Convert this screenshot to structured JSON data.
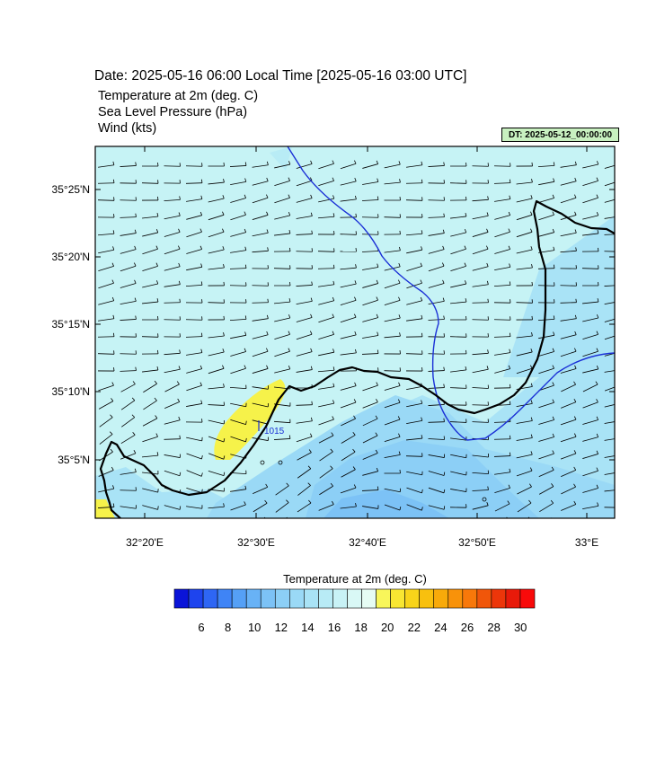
{
  "header": {
    "date_line": "Date: 2025-05-16  06:00 Local Time [2025-05-16  03:00 UTC]",
    "fields": [
      "Temperature at 2m   (deg. C)",
      "Sea Level Pressure   (hPa)",
      "Wind   (kts)"
    ],
    "dt_badge": "DT: 2025-05-12_00:00:00"
  },
  "map": {
    "lat_labels": [
      "35°25'N",
      "35°20'N",
      "35°15'N",
      "35°10'N",
      "35°5'N"
    ],
    "lon_labels": [
      "32°20'E",
      "32°30'E",
      "32°40'E",
      "32°50'E",
      "33°E"
    ],
    "isobar_label": "1015",
    "colors": {
      "land_outline": "#000000",
      "isobar": "#1a2fd6",
      "wind_barb": "#000000"
    }
  },
  "colorbar": {
    "title": "Temperature at 2m  (deg. C)",
    "tick_labels": [
      "6",
      "8",
      "10",
      "12",
      "14",
      "16",
      "18",
      "20",
      "22",
      "24",
      "26",
      "28",
      "30"
    ],
    "colors": [
      "#0a14d8",
      "#1e44ee",
      "#2e66f4",
      "#3f84f6",
      "#55a0f6",
      "#68b2f6",
      "#7cc2f6",
      "#8ccff6",
      "#9ad9f6",
      "#a9e3f6",
      "#b8ebf6",
      "#c8f2f6",
      "#d9f8f6",
      "#e6fcf4",
      "#f8f65a",
      "#f8e632",
      "#f8d41a",
      "#f8c00e",
      "#f8aa0a",
      "#f8920a",
      "#f8780a",
      "#f0560a",
      "#ec360a",
      "#e81a0a",
      "#f80a0a"
    ]
  }
}
